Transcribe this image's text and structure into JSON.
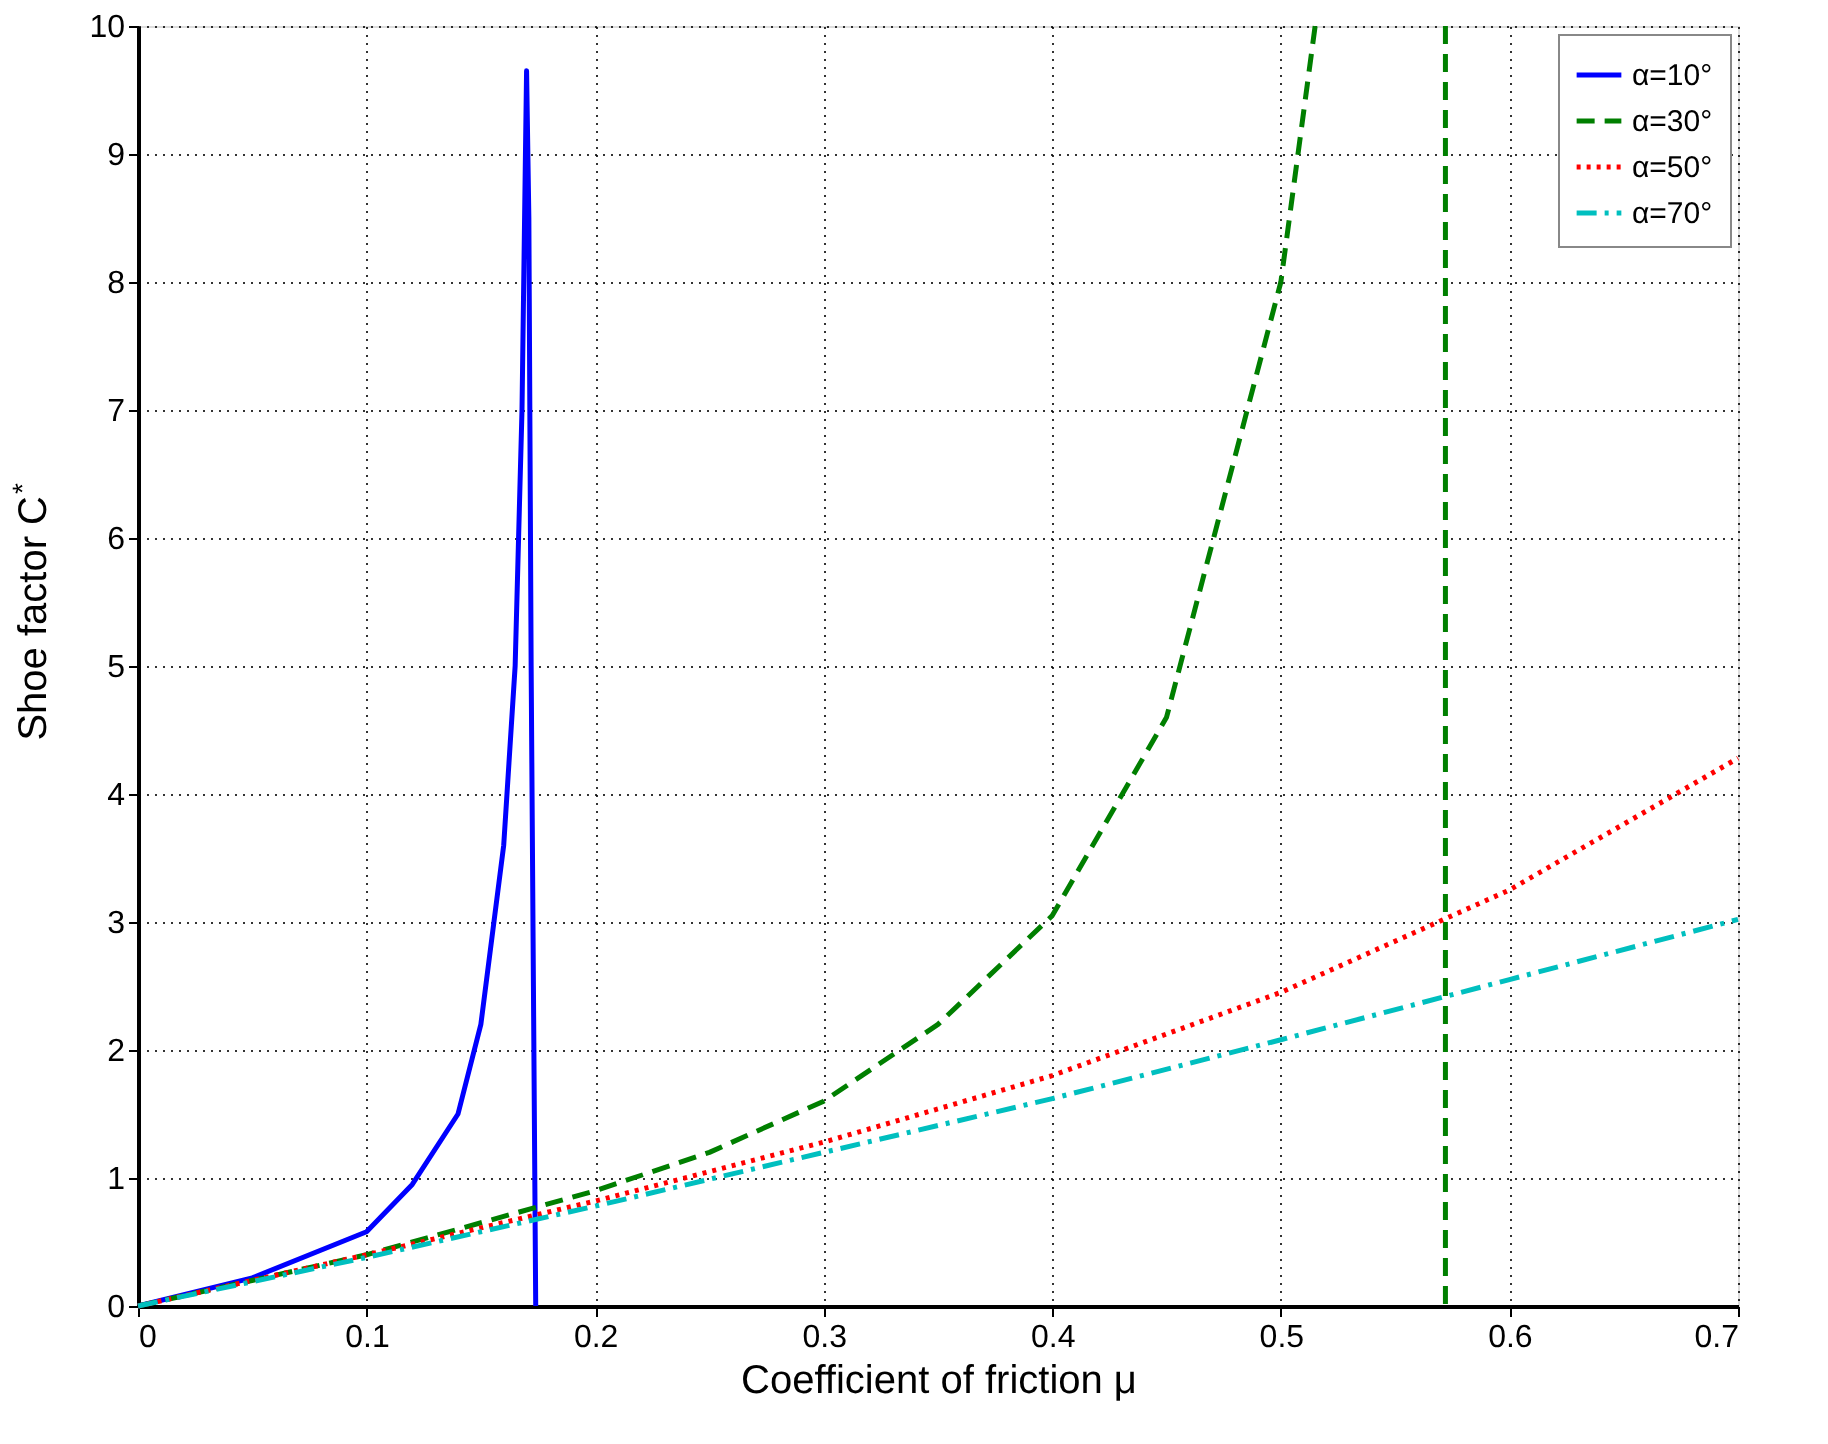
{
  "chart_data": {
    "type": "line",
    "xlabel": "Coefficient of friction μ",
    "ylabel": "Shoe factor C$^{*}$",
    "xlim": [
      0,
      0.7
    ],
    "xticks": [
      0,
      0.1,
      0.2,
      0.3,
      0.4,
      0.5,
      0.6,
      0.7
    ],
    "ylim": [
      0,
      10
    ],
    "yticks": [
      0,
      1,
      2,
      3,
      4,
      5,
      6,
      7,
      8,
      9,
      10
    ],
    "grid": true,
    "legend": "top right",
    "marker": "none",
    "series": [
      {
        "name": "α=10°",
        "color": "#0000ff",
        "line_style": "solid",
        "x": [
          0,
          0.05,
          0.1,
          0.12,
          0.14,
          0.15,
          0.16,
          0.165,
          0.168,
          0.17,
          0.171,
          0.172,
          0.173,
          0.174
        ],
        "values": [
          0,
          0.22,
          0.58,
          0.95,
          1.5,
          2.2,
          3.6,
          5,
          7,
          9.65,
          8.5,
          5,
          2.5,
          0
        ]
      },
      {
        "name": "α=30°",
        "color": "#007f00",
        "line_style": "dashed",
        "x": [
          0,
          0.1,
          0.2,
          0.25,
          0.3,
          0.35,
          0.4,
          0.45,
          0.5,
          0.515,
          0.54,
          0.572,
          0.572
        ],
        "values": [
          0,
          0.4,
          0.9,
          1.2,
          1.6,
          2.2,
          3.05,
          4.6,
          8.0,
          10,
          null,
          10,
          0
        ]
      },
      {
        "name": "α=50°",
        "color": "#ff0000",
        "line_style": "dotted",
        "x": [
          0,
          0.1,
          0.2,
          0.3,
          0.4,
          0.5,
          0.6,
          0.7
        ],
        "values": [
          0,
          0.4,
          0.82,
          1.28,
          1.8,
          2.45,
          3.25,
          4.28
        ]
      },
      {
        "name": "α=70°",
        "color": "#00bfbf",
        "line_style": "dashdot",
        "x": [
          0,
          0.1,
          0.2,
          0.3,
          0.4,
          0.5,
          0.6,
          0.7
        ],
        "values": [
          0,
          0.38,
          0.78,
          1.2,
          1.62,
          2.08,
          2.55,
          3.02
        ]
      }
    ]
  }
}
